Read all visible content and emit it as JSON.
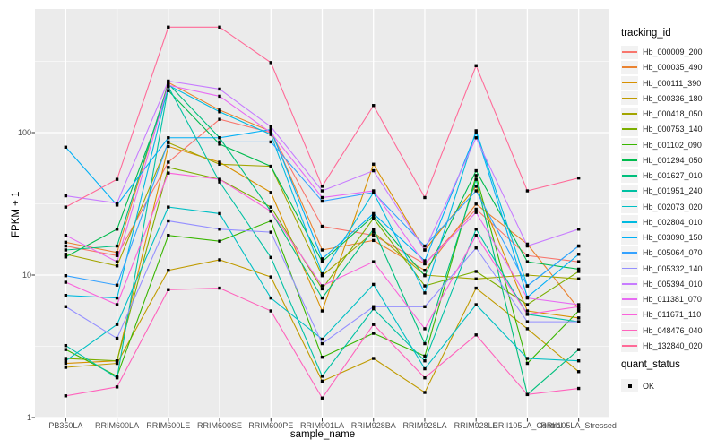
{
  "figure": {
    "background": "#ffffff",
    "panel_background": "#ebebeb",
    "grid_color": "#ffffff",
    "axis_text_color": "#4d4d4d",
    "tick_color": "#333333",
    "marker_color": "#000000"
  },
  "labels": {
    "x_title": "sample_name",
    "y_title": "FPKM + 1",
    "tracking_legend_title": "tracking_id",
    "quant_legend_title": "quant_status",
    "quant_ok": "OK"
  },
  "chart_data": {
    "type": "line",
    "title": "",
    "xlabel": "sample_name",
    "ylabel": "FPKM + 1",
    "y_scale": "log10",
    "ylim": [
      1,
      600
    ],
    "y_ticks": [
      {
        "label": "1",
        "value": 1
      },
      {
        "label": "10",
        "value": 10
      },
      {
        "label": "100",
        "value": 100
      }
    ],
    "y_minor_gridlines": [
      3.162,
      31.62,
      316.2
    ],
    "grid": true,
    "legend_position": "right",
    "marker": "black-square",
    "categories": [
      "PB350LA",
      "RRIM600LA",
      "RRIM600LE",
      "RRIM600SE",
      "RRIM600PE",
      "RRIM901LA",
      "RRIM928BA",
      "RRIM928LA",
      "RRIM928LE",
      "RRII105LA_Control",
      "RRII105LA_Stressed"
    ],
    "quant_legend": {
      "title": "quant_status",
      "items": [
        "OK"
      ]
    },
    "legend_title": "tracking_id",
    "series": [
      {
        "name": "Hb_000009_200",
        "color": "#F8766D",
        "values": [
          16,
          13.7,
          62,
          124,
          100,
          22,
          19,
          12,
          29,
          13.7,
          12.4
        ]
      },
      {
        "name": "Hb_000035_490",
        "color": "#EA8331",
        "values": [
          17,
          14.4,
          225,
          144,
          102,
          15,
          17.5,
          10.8,
          31.5,
          16.5,
          5.8
        ]
      },
      {
        "name": "Hb_000111_390",
        "color": "#D89000",
        "values": [
          2.4,
          2.5,
          80,
          62,
          38,
          5.6,
          60,
          15,
          42,
          5.6,
          5.0
        ]
      },
      {
        "name": "Hb_000336_180",
        "color": "#C09B00",
        "values": [
          2.25,
          2.4,
          10.8,
          12.8,
          9.7,
          1.8,
          2.6,
          1.5,
          8.1,
          4.2,
          2.1
        ]
      },
      {
        "name": "Hb_000418_050",
        "color": "#A3A500",
        "values": [
          14,
          11.6,
          85,
          60,
          58,
          9.9,
          20,
          10,
          9.4,
          10,
          9.4
        ]
      },
      {
        "name": "Hb_000753_140",
        "color": "#7CAE00",
        "values": [
          2.6,
          2.5,
          57,
          47,
          30,
          8.0,
          25,
          8.4,
          10.6,
          6.2,
          10.6
        ]
      },
      {
        "name": "Hb_001102_090",
        "color": "#39B600",
        "values": [
          3.0,
          1.95,
          19,
          17.3,
          24,
          2.65,
          3.9,
          2.7,
          50,
          2.4,
          5.6
        ]
      },
      {
        "name": "Hb_001294_050",
        "color": "#00BB4E",
        "values": [
          13.4,
          21,
          197,
          83,
          58,
          12.4,
          26,
          9.9,
          54,
          12.4,
          11
        ]
      },
      {
        "name": "Hb_001627_010",
        "color": "#00BF7D",
        "values": [
          15,
          16,
          220,
          92,
          28,
          6.9,
          21,
          3.3,
          47,
          1.45,
          3.0
        ]
      },
      {
        "name": "Hb_001951_240",
        "color": "#00C1A3",
        "values": [
          3.2,
          1.9,
          210,
          45,
          13.3,
          1.95,
          5.8,
          2.5,
          21,
          5.3,
          4.7
        ]
      },
      {
        "name": "Hb_002073_020",
        "color": "#00BFC4",
        "values": [
          2.5,
          4.5,
          30,
          27,
          6.9,
          3.55,
          8.6,
          2.2,
          6.2,
          2.6,
          2.5
        ]
      },
      {
        "name": "Hb_002804_010",
        "color": "#00BAE0",
        "values": [
          7.2,
          6.9,
          215,
          140,
          97,
          10.2,
          38,
          7.5,
          103,
          8.4,
          16
        ]
      },
      {
        "name": "Hb_003090_150",
        "color": "#00B0F6",
        "values": [
          79,
          31,
          92,
          92,
          105,
          13,
          27,
          12.6,
          100,
          7.0,
          14
        ]
      },
      {
        "name": "Hb_005064_070",
        "color": "#35A2FF",
        "values": [
          9.9,
          8.5,
          86,
          86,
          86,
          33,
          38,
          16,
          39,
          8.4,
          16
        ]
      },
      {
        "name": "Hb_005332_140",
        "color": "#9590FF",
        "values": [
          6.0,
          3.6,
          24,
          21,
          20,
          3.3,
          6.0,
          6.0,
          15.5,
          4.7,
          4.7
        ]
      },
      {
        "name": "Hb_005394_010",
        "color": "#C77CFF",
        "values": [
          36,
          32,
          230,
          202,
          110,
          39,
          54,
          15,
          92,
          16,
          21
        ]
      },
      {
        "name": "Hb_011381_070",
        "color": "#E76BF3",
        "values": [
          19,
          12.4,
          215,
          180,
          100,
          35,
          39,
          12,
          27.5,
          6.9,
          6.2
        ]
      },
      {
        "name": "Hb_011671_110",
        "color": "#FA62DB",
        "values": [
          8.9,
          6.2,
          52,
          47,
          28,
          8.4,
          12.4,
          4.2,
          19,
          5.3,
          6.0
        ]
      },
      {
        "name": "Hb_048476_040",
        "color": "#FF62BC",
        "values": [
          1.42,
          1.64,
          7.9,
          8.1,
          5.6,
          1.37,
          4.5,
          1.9,
          3.8,
          1.45,
          1.6
        ]
      },
      {
        "name": "Hb_132840_020",
        "color": "#FF6A98",
        "values": [
          30,
          47,
          550,
          550,
          310,
          42,
          155,
          35,
          295,
          39,
          48
        ]
      }
    ]
  }
}
